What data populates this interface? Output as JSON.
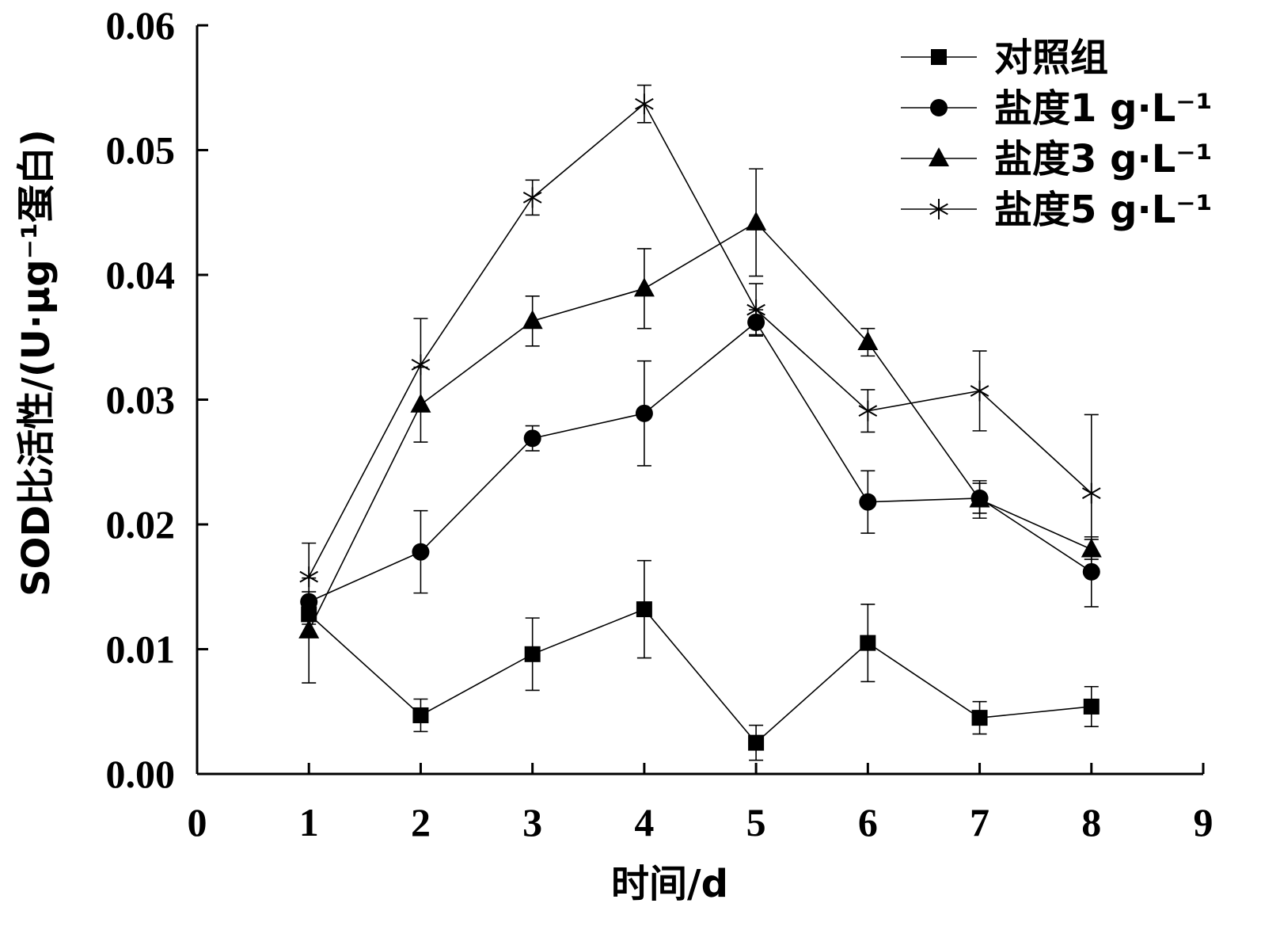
{
  "chart_data": {
    "type": "line",
    "xlabel": "时间/d",
    "ylabel": "SOD比活性/(U·μg⁻¹蛋白)",
    "xlim": [
      0,
      9
    ],
    "ylim": [
      0,
      0.06
    ],
    "x_ticks": [
      "0",
      "1",
      "2",
      "3",
      "4",
      "5",
      "6",
      "7",
      "8",
      "9"
    ],
    "y_ticks": [
      "0.00",
      "0.01",
      "0.02",
      "0.03",
      "0.04",
      "0.05",
      "0.06"
    ],
    "x": [
      1,
      2,
      3,
      4,
      5,
      6,
      7,
      8
    ],
    "legend_position": "top-right",
    "series": [
      {
        "name": "对照组",
        "marker": "square",
        "values": [
          0.0128,
          0.0047,
          0.0096,
          0.0132,
          0.0025,
          0.0105,
          0.0045,
          0.0054
        ],
        "errors": [
          0.0008,
          0.0013,
          0.0029,
          0.0039,
          0.0014,
          0.0031,
          0.0013,
          0.0016
        ]
      },
      {
        "name": "盐度1 g·L⁻¹",
        "marker": "circle",
        "values": [
          0.0138,
          0.0178,
          0.0269,
          0.0289,
          0.0362,
          0.0218,
          0.0221,
          0.0162
        ],
        "errors": [
          0.0008,
          0.0033,
          0.001,
          0.0042,
          0.001,
          0.0025,
          0.0012,
          0.0028
        ]
      },
      {
        "name": "盐度3 g·L⁻¹",
        "marker": "triangle",
        "values": [
          0.0115,
          0.0296,
          0.0363,
          0.0389,
          0.0442,
          0.0346,
          0.022,
          0.018
        ],
        "errors": [
          0.0042,
          0.003,
          0.002,
          0.0032,
          0.0043,
          0.0011,
          0.0015,
          0.0008
        ]
      },
      {
        "name": "盐度5 g·L⁻¹",
        "marker": "asterisk",
        "values": [
          0.0158,
          0.0328,
          0.0462,
          0.0537,
          0.0372,
          0.0291,
          0.0307,
          0.0225
        ],
        "errors": [
          0.0027,
          0.0037,
          0.0014,
          0.0015,
          0.0021,
          0.0017,
          0.0032,
          0.0063
        ]
      }
    ]
  }
}
